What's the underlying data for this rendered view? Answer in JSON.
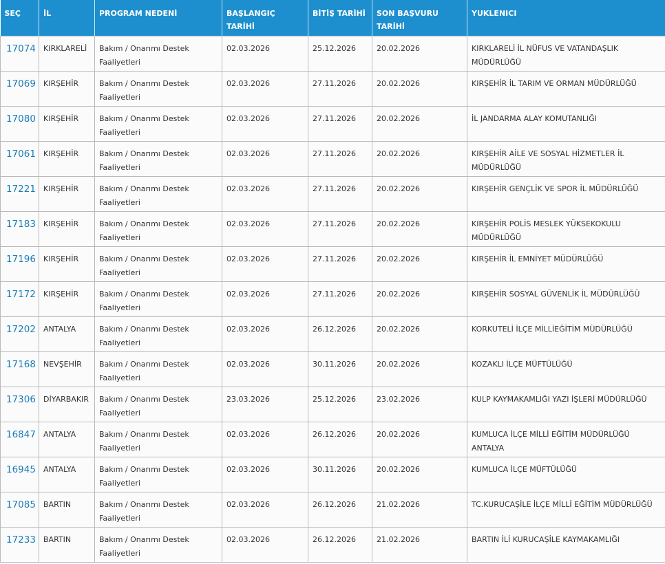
{
  "table": {
    "headers": [
      "SEÇ",
      "İL",
      "PROGRAM NEDENİ",
      "BAŞLANGIÇ TARİHİ",
      "BİTİŞ TARİHİ",
      "SON BAŞVURU TARİHİ",
      "YUKLENICI"
    ],
    "rows": [
      [
        "17074",
        "KIRKLARELİ",
        "Bakım / Onarımı Destek Faaliyetleri",
        "02.03.2026",
        "25.12.2026",
        "20.02.2026",
        "KIRKLARELİ İL NÜFUS VE VATANDAŞLIK MÜDÜRLÜĞÜ"
      ],
      [
        "17069",
        "KIRŞEHİR",
        "Bakım / Onarımı Destek Faaliyetleri",
        "02.03.2026",
        "27.11.2026",
        "20.02.2026",
        "KIRŞEHİR İL TARIM VE ORMAN MÜDÜRLÜĞÜ"
      ],
      [
        "17080",
        "KIRŞEHİR",
        "Bakım / Onarımı Destek Faaliyetleri",
        "02.03.2026",
        "27.11.2026",
        "20.02.2026",
        "İL JANDARMA ALAY KOMUTANLIĞI"
      ],
      [
        "17061",
        "KIRŞEHİR",
        "Bakım / Onarımı Destek Faaliyetleri",
        "02.03.2026",
        "27.11.2026",
        "20.02.2026",
        "KIRŞEHİR AİLE VE SOSYAL HİZMETLER İL MÜDÜRLÜĞÜ"
      ],
      [
        "17221",
        "KIRŞEHİR",
        "Bakım / Onarımı Destek Faaliyetleri",
        "02.03.2026",
        "27.11.2026",
        "20.02.2026",
        "KIRŞEHİR GENÇLİK VE SPOR İL MÜDÜRLÜĞÜ"
      ],
      [
        "17183",
        "KIRŞEHİR",
        "Bakım / Onarımı Destek Faaliyetleri",
        "02.03.2026",
        "27.11.2026",
        "20.02.2026",
        "KIRŞEHİR POLİS MESLEK YÜKSEKOKULU MÜDÜRLÜĞÜ"
      ],
      [
        "17196",
        "KIRŞEHİR",
        "Bakım / Onarımı Destek Faaliyetleri",
        "02.03.2026",
        "27.11.2026",
        "20.02.2026",
        "KIRŞEHİR İL EMNİYET MÜDÜRLÜĞÜ"
      ],
      [
        "17172",
        "KIRŞEHİR",
        "Bakım / Onarımı Destek Faaliyetleri",
        "02.03.2026",
        "27.11.2026",
        "20.02.2026",
        "KIRŞEHİR SOSYAL GÜVENLİK İL MÜDÜRLÜĞÜ"
      ],
      [
        "17202",
        "ANTALYA",
        "Bakım / Onarımı Destek Faaliyetleri",
        "02.03.2026",
        "26.12.2026",
        "20.02.2026",
        "KORKUTELİ İLÇE MİLLİEĞİTİM MÜDÜRLÜĞÜ"
      ],
      [
        "17168",
        "NEVŞEHİR",
        "Bakım / Onarımı Destek Faaliyetleri",
        "02.03.2026",
        "30.11.2026",
        "20.02.2026",
        "KOZAKLI İLÇE MÜFTÜLÜĞÜ"
      ],
      [
        "17306",
        "DİYARBAKIR",
        "Bakım / Onarımı Destek Faaliyetleri",
        "23.03.2026",
        "25.12.2026",
        "23.02.2026",
        "KULP KAYMAKAMLIĞI YAZI İŞLERİ MÜDÜRLÜĞÜ"
      ],
      [
        "16847",
        "ANTALYA",
        "Bakım / Onarımı Destek Faaliyetleri",
        "02.03.2026",
        "26.12.2026",
        "20.02.2026",
        "KUMLUCA İLÇE MİLLİ EĞİTİM MÜDÜRLÜĞÜ ANTALYA"
      ],
      [
        "16945",
        "ANTALYA",
        "Bakım / Onarımı Destek Faaliyetleri",
        "02.03.2026",
        "30.11.2026",
        "20.02.2026",
        "KUMLUCA İLÇE MÜFTÜLÜĞÜ"
      ],
      [
        "17085",
        "BARTIN",
        "Bakım / Onarımı Destek Faaliyetleri",
        "02.03.2026",
        "26.12.2026",
        "21.02.2026",
        "TC.KURUCAŞİLE İLÇE MİLLİ EĞİTİM MÜDÜRLÜĞÜ"
      ],
      [
        "17233",
        "BARTIN",
        "Bakım / Onarımı Destek Faaliyetleri",
        "02.03.2026",
        "26.12.2026",
        "21.02.2026",
        "BARTIN İLİ KURUCAŞİLE KAYMAKAMLIĞI"
      ]
    ]
  }
}
